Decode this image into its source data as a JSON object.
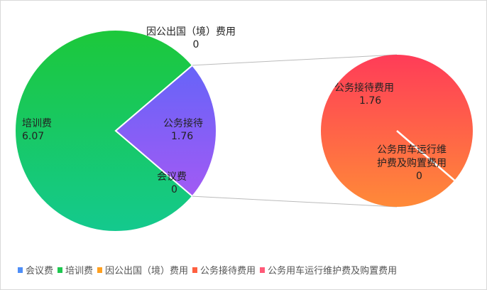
{
  "chart_data": {
    "type": "pie-of-pie",
    "primary": {
      "categories": [
        "培训费",
        "公务接待",
        "会议费",
        "因公出国（境）费用"
      ],
      "values": [
        6.07,
        1.76,
        0,
        0
      ]
    },
    "secondary": {
      "categories": [
        "公务接待费用",
        "公务用车运行维护费及购置费用"
      ],
      "values": [
        1.76,
        0
      ]
    },
    "labels": {
      "training": {
        "name": "培训费",
        "value": "6.07"
      },
      "other": {
        "name": "公务接待",
        "value": "1.76"
      },
      "meeting": {
        "name": "会议费",
        "value": "0"
      },
      "abroad": {
        "name": "因公出国（境）费用",
        "value": "0"
      },
      "reception": {
        "name": "公务接待费用",
        "value": "1.76"
      },
      "car_line1": "公务用车运行维",
      "car_line2": "护费及购置费用",
      "car_value": "0"
    },
    "legend": {
      "placement": "bottom-left",
      "items": [
        {
          "label": "会议费",
          "color": "#4e8ef7"
        },
        {
          "label": "培训费",
          "color": "#1ec850"
        },
        {
          "label": "因公出国（境）费用",
          "color": "#ffa020"
        },
        {
          "label": "公务接待费用",
          "color": "#ff6040"
        },
        {
          "label": "公务用车运行维护费及购置费用",
          "color": "#ff5a78"
        }
      ]
    }
  }
}
